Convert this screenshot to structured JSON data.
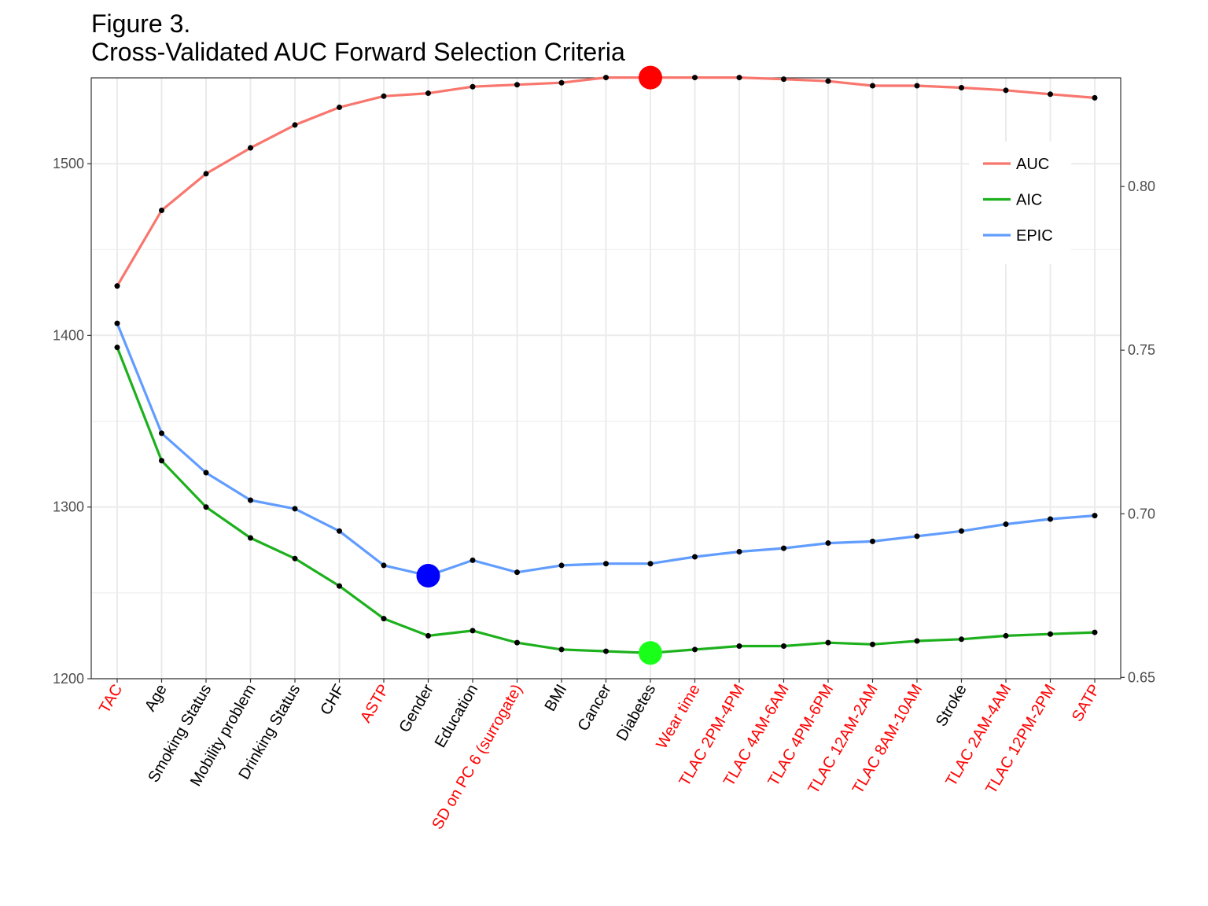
{
  "title": {
    "line1": "Figure 3.",
    "line2": "Cross-Validated AUC Forward  Selection Criteria"
  },
  "chart_data": {
    "type": "line",
    "title": "Figure 3. Cross-Validated AUC Forward  Selection Criteria",
    "categories": [
      "TAC",
      "Age",
      "Smoking Status",
      "Mobility problem",
      "Drinking Status",
      "CHF",
      "ASTP",
      "Gender",
      "Education",
      "SD on PC 6 (surrogate)",
      "BMI",
      "Cancer",
      "Diabetes",
      "Wear time",
      "TLAC 2PM-4PM",
      "TLAC 4AM-6AM",
      "TLAC 4PM-6PM",
      "TLAC 12AM-2AM",
      "TLAC 8AM-10AM",
      "Stroke",
      "TLAC 2AM-4AM",
      "TLAC 12PM-2PM",
      "SATP"
    ],
    "highlighted_categories": [
      "TAC",
      "ASTP",
      "SD on PC 6 (surrogate)",
      "Wear time",
      "TLAC 2PM-4PM",
      "TLAC 4AM-6AM",
      "TLAC 4PM-6PM",
      "TLAC 12AM-2AM",
      "TLAC 8AM-10AM",
      "TLAC 2AM-4AM",
      "TLAC 12PM-2PM",
      "SATP"
    ],
    "category_color": "#000000",
    "highlight_color": "#ff0000",
    "y_left": {
      "ticks": [
        1200,
        1300,
        1400,
        1500
      ],
      "range": [
        1200,
        1550
      ]
    },
    "y_right": {
      "ticks": [
        0.65,
        0.7,
        0.75,
        0.8
      ],
      "range": [
        0.6496,
        0.8332
      ]
    },
    "grid": true,
    "legend_position": "top-right",
    "series": [
      {
        "name": "AUC",
        "color": "#f8766d",
        "axis": "right",
        "values": [
          0.7696,
          0.7927,
          0.8039,
          0.8118,
          0.8188,
          0.8242,
          0.8276,
          0.8285,
          0.8305,
          0.8311,
          0.8317,
          0.8333,
          0.8333,
          0.8333,
          0.8333,
          0.8328,
          0.8322,
          0.8308,
          0.8308,
          0.8302,
          0.8294,
          0.8282,
          0.8271
        ],
        "highlight": {
          "category": "Diabetes",
          "color": "#ff0000"
        }
      },
      {
        "name": "AIC",
        "color": "#1db01d",
        "axis": "left",
        "values": [
          1393,
          1327,
          1300,
          1282,
          1270,
          1254,
          1235,
          1225,
          1228,
          1221,
          1217,
          1216,
          1215,
          1217,
          1219,
          1219,
          1221,
          1220,
          1222,
          1223,
          1225,
          1226,
          1227
        ],
        "highlight": {
          "category": "Diabetes",
          "color": "#1aff1a"
        }
      },
      {
        "name": "EPIC",
        "color": "#619cff",
        "axis": "left",
        "values": [
          1407,
          1343,
          1320,
          1304,
          1299,
          1286,
          1266,
          1260,
          1269,
          1262,
          1266,
          1267,
          1267,
          1271,
          1274,
          1276,
          1279,
          1280,
          1283,
          1286,
          1290,
          1293,
          1295
        ],
        "highlight": {
          "category": "Gender",
          "color": "#0000ff"
        }
      }
    ]
  }
}
